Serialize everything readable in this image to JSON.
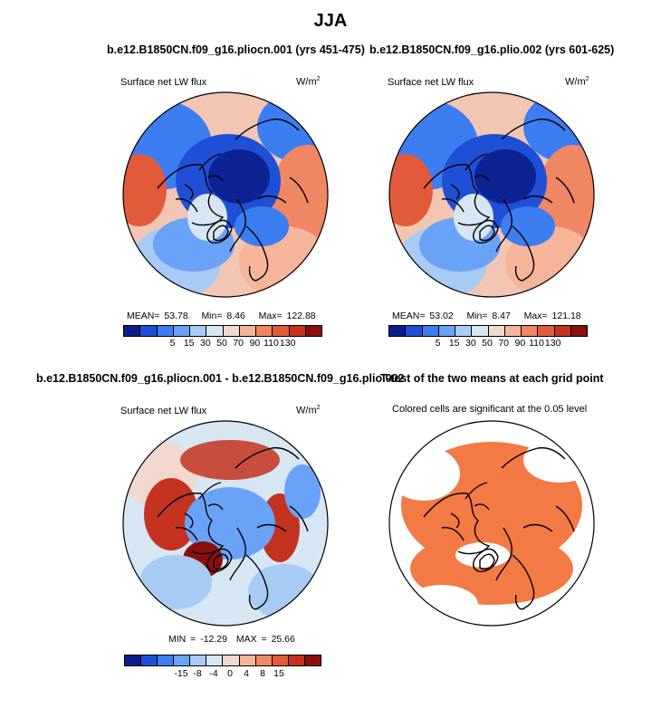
{
  "main_title": "JJA",
  "chart_data": [
    {
      "type": "heatmap",
      "title": "b.e12.B1850CN.f09_g16.pliocn.001 (yrs 451-475)",
      "variable": "Surface net LW flux",
      "units": "W/m",
      "units_exp": "2",
      "mean_label": "MEAN=",
      "mean": "53.78",
      "min_label": "Min=",
      "min": "8.46",
      "max_label": "Max=",
      "max": "122.88",
      "colorbar_ticks": [
        "5",
        "15",
        "30",
        "50",
        "70",
        "90",
        "110",
        "130"
      ],
      "colorbar_colors": [
        "#0b1d8c",
        "#1f4fd6",
        "#3c7df2",
        "#6aa2f7",
        "#a7cbf4",
        "#d6e6f2",
        "#f2d9cf",
        "#f6b49a",
        "#ef8664",
        "#e15b3a",
        "#c43320",
        "#8a0f0a"
      ]
    },
    {
      "type": "heatmap",
      "title": "b.e12.B1850CN.f09_g16.plio.002 (yrs 601-625)",
      "variable": "Surface net LW flux",
      "units": "W/m",
      "units_exp": "2",
      "mean_label": "MEAN=",
      "mean": "53.02",
      "min_label": "Min=",
      "min": "8.47",
      "max_label": "Max=",
      "max": "121.18",
      "colorbar_ticks": [
        "5",
        "15",
        "30",
        "50",
        "70",
        "90",
        "110",
        "130"
      ],
      "colorbar_colors": [
        "#0b1d8c",
        "#1f4fd6",
        "#3c7df2",
        "#6aa2f7",
        "#a7cbf4",
        "#d6e6f2",
        "#f2d9cf",
        "#f6b49a",
        "#ef8664",
        "#e15b3a",
        "#c43320",
        "#8a0f0a"
      ]
    },
    {
      "type": "heatmap",
      "title": "b.e12.B1850CN.f09_g16.pliocn.001 - b.e12.B1850CN.f09_g16.plio.002",
      "variable": "Surface net LW flux",
      "units": "W/m",
      "units_exp": "2",
      "min_label": "MIN =",
      "min": "-12.29",
      "max_label": "MAX =",
      "max": "25.66",
      "colorbar_ticks": [
        "-15",
        "-8",
        "-4",
        "0",
        "4",
        "8",
        "15"
      ],
      "colorbar_colors": [
        "#0b1d8c",
        "#1f4fd6",
        "#3c7df2",
        "#6aa2f7",
        "#a7cbf4",
        "#d6e6f2",
        "#f2d9cf",
        "#f6b49a",
        "#ef8664",
        "#e15b3a",
        "#c43320",
        "#8a0f0a"
      ]
    },
    {
      "type": "heatmap",
      "title": "T-test of the two means at each grid point",
      "subtitle": "Colored cells are significant at the 0.05 level",
      "significance_color": "#f47a45"
    }
  ]
}
